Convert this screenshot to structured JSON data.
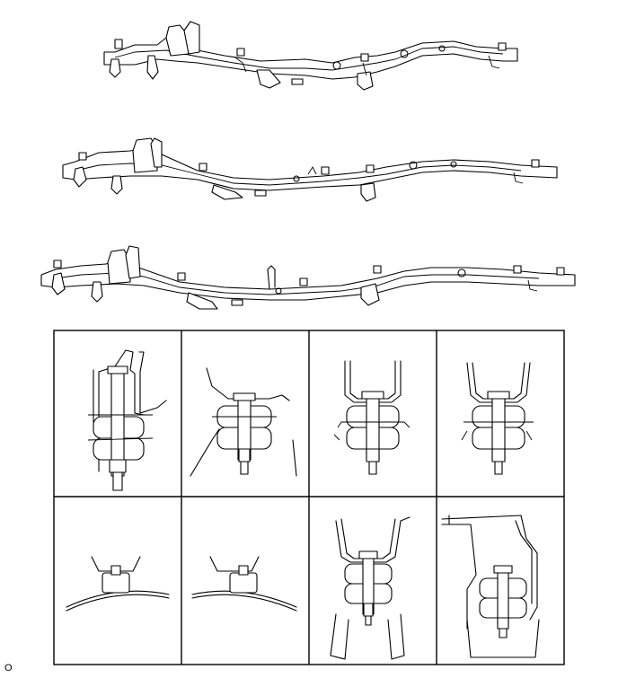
{
  "figure_code": "O",
  "frames": [
    {
      "name": "frame-top"
    },
    {
      "name": "frame-middle"
    },
    {
      "name": "frame-bottom"
    }
  ],
  "mount_panels": [
    {
      "name": "mount-detail-1",
      "kind": "bracket-tall"
    },
    {
      "name": "mount-detail-2",
      "kind": "bracket-wide"
    },
    {
      "name": "mount-detail-3",
      "kind": "bracket-u"
    },
    {
      "name": "mount-detail-4",
      "kind": "bracket-u"
    },
    {
      "name": "mount-detail-5",
      "kind": "cushion-flat"
    },
    {
      "name": "mount-detail-6",
      "kind": "cushion-flat"
    },
    {
      "name": "mount-detail-7",
      "kind": "bracket-u-low"
    },
    {
      "name": "mount-detail-8",
      "kind": "bracket-box"
    }
  ]
}
